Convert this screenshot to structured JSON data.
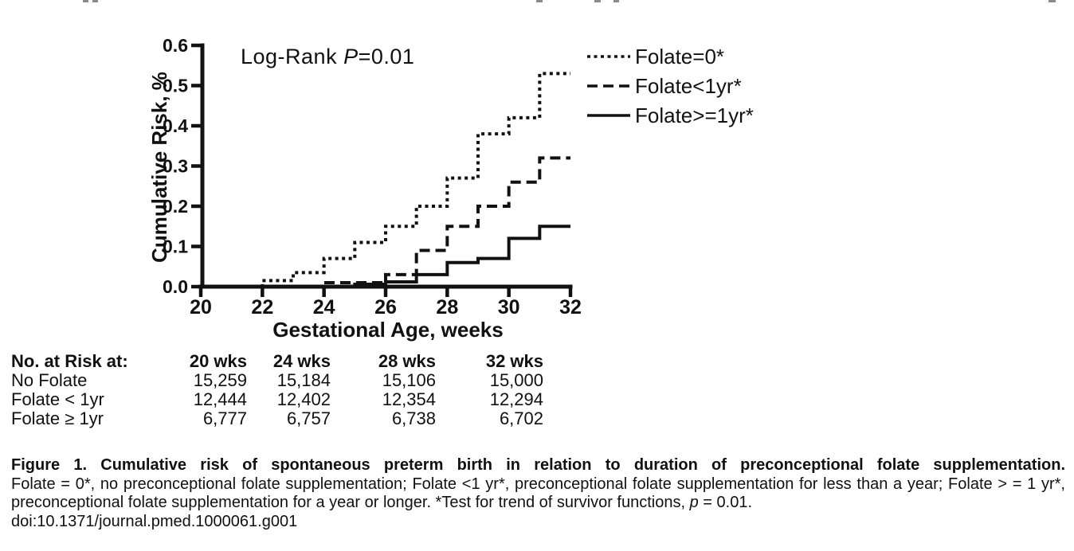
{
  "colors": {
    "ink": "#111111",
    "background": "#ffffff"
  },
  "chart_data": {
    "type": "line",
    "subtype": "step-survival",
    "title": "",
    "xlabel": "Gestational Age, weeks",
    "ylabel": "Cumulative Risk, %",
    "xlim": [
      20,
      32
    ],
    "ylim": [
      0.0,
      0.6
    ],
    "xticks": [
      20,
      22,
      24,
      26,
      28,
      30,
      32
    ],
    "yticks": [
      0.0,
      0.1,
      0.2,
      0.3,
      0.4,
      0.5,
      0.6
    ],
    "grid": "off",
    "legend_position": "top-right",
    "annotation": {
      "prefix": "Log-Rank ",
      "stat_symbol": "P",
      "value_text": "=0.01"
    },
    "series": [
      {
        "name": "Folate=0*",
        "line_style": "dotted",
        "steps": [
          [
            20,
            0
          ],
          [
            22,
            0.015
          ],
          [
            23,
            0.035
          ],
          [
            24,
            0.07
          ],
          [
            25,
            0.11
          ],
          [
            26,
            0.15
          ],
          [
            27,
            0.2
          ],
          [
            28,
            0.27
          ],
          [
            29,
            0.38
          ],
          [
            30,
            0.42
          ],
          [
            31,
            0.53
          ]
        ],
        "end_x": 32
      },
      {
        "name": "Folate<1yr*",
        "line_style": "dashed",
        "steps": [
          [
            20,
            0
          ],
          [
            24,
            0.01
          ],
          [
            26,
            0.03
          ],
          [
            27,
            0.09
          ],
          [
            28,
            0.15
          ],
          [
            29,
            0.2
          ],
          [
            30,
            0.26
          ],
          [
            31,
            0.32
          ]
        ],
        "end_x": 32
      },
      {
        "name": "Folate>=1yr*",
        "line_style": "solid",
        "steps": [
          [
            20,
            0
          ],
          [
            25,
            0.006
          ],
          [
            26,
            0.012
          ],
          [
            27,
            0.03
          ],
          [
            28,
            0.06
          ],
          [
            29,
            0.07
          ],
          [
            30,
            0.12
          ],
          [
            31,
            0.15
          ]
        ],
        "end_x": 32
      }
    ]
  },
  "risk_table": {
    "header": [
      "No. at Risk at:",
      "20 wks",
      "24 wks",
      "28 wks",
      "32 wks"
    ],
    "rows": [
      {
        "label": "No Folate",
        "values": [
          "15,259",
          "15,184",
          "15,106",
          "15,000"
        ]
      },
      {
        "label": "Folate < 1yr",
        "values": [
          "12,444",
          "12,402",
          "12,354",
          "12,294"
        ]
      },
      {
        "label": "Folate ≥ 1yr",
        "values": [
          "6,777",
          "6,757",
          "6,738",
          "6,702"
        ]
      }
    ]
  },
  "caption": {
    "title": "Figure 1. Cumulative risk of spontaneous preterm birth in relation to duration of preconceptional folate supplementation.",
    "body_before_p": "Folate = 0*, no preconceptional folate supplementation; Folate <1 yr*, preconceptional folate supplementation for less than a year; Folate > = 1 yr*, preconceptional folate supplementation for a year or longer. *Test for trend of survivor functions, ",
    "p_symbol": "p",
    "body_after_p": " = 0.01.",
    "doi": "doi:10.1371/journal.pmed.1000061.g001"
  }
}
